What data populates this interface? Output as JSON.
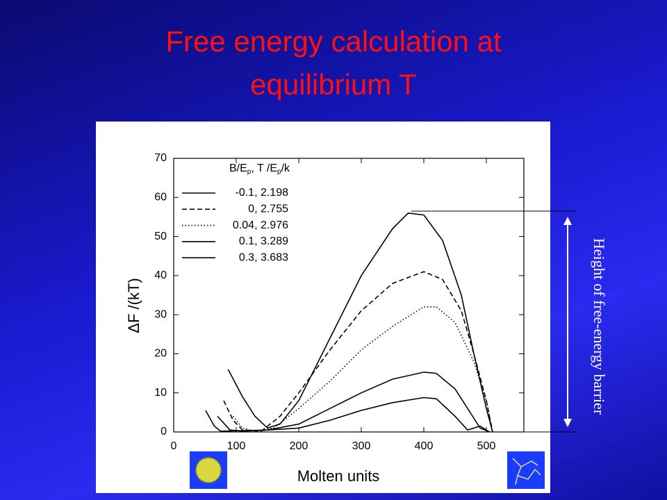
{
  "chart_data": {
    "type": "line",
    "title": [
      "Free energy calculation at",
      "equilibrium T"
    ],
    "x_label": "Molten units",
    "y_label": "ΔF /(kT)",
    "annotation": "Height of free-energy barrier",
    "legend_title_parts": [
      "B/E",
      "p",
      ", T /E",
      "p",
      "/k"
    ],
    "xlim": [
      0,
      560
    ],
    "xticks": [
      0,
      100,
      200,
      300,
      400,
      500
    ],
    "ylim": [
      0,
      70
    ],
    "yticks": [
      0,
      10,
      20,
      30,
      40,
      50,
      60,
      70
    ],
    "series": [
      {
        "name": "-0.1, 2.198",
        "color": "#000000",
        "dash": "solid",
        "x": [
          87,
          110,
          130,
          150,
          170,
          200,
          250,
          300,
          350,
          375,
          400,
          430,
          460,
          480,
          500,
          510
        ],
        "values": [
          16,
          9,
          4,
          1,
          2,
          8,
          24,
          40,
          52,
          56,
          55.5,
          49,
          35,
          20,
          6,
          0
        ]
      },
      {
        "name": "0, 2.755",
        "color": "#000000",
        "dash": "dashed",
        "x": [
          80,
          95,
          110,
          140,
          170,
          200,
          250,
          300,
          350,
          400,
          430,
          460,
          480,
          500,
          510
        ],
        "values": [
          8,
          3,
          0.5,
          0.2,
          4,
          10,
          21,
          31,
          38,
          41,
          39,
          31,
          20,
          8,
          0
        ]
      },
      {
        "name": "0.04, 2.976",
        "color": "#000000",
        "dash": "dotted",
        "x": [
          95,
          110,
          130,
          160,
          200,
          250,
          300,
          350,
          400,
          420,
          450,
          480,
          500,
          510
        ],
        "values": [
          4,
          1,
          0.2,
          1,
          6,
          13,
          21,
          27,
          32,
          32,
          28,
          18,
          8,
          0
        ]
      },
      {
        "name": "0.1, 3.289",
        "color": "#000000",
        "dash": "solid",
        "x": [
          70,
          90,
          110,
          150,
          200,
          250,
          300,
          350,
          400,
          420,
          450,
          470,
          490,
          505
        ],
        "values": [
          4,
          0.5,
          0.2,
          0.5,
          2,
          6,
          10,
          13.5,
          15.3,
          15,
          11,
          6,
          1,
          0
        ]
      },
      {
        "name": "0.3, 3.683",
        "color": "#000000",
        "dash": "solid",
        "x": [
          51,
          65,
          75,
          100,
          150,
          200,
          250,
          300,
          350,
          400,
          420,
          450,
          470,
          490,
          505
        ],
        "values": [
          5.5,
          1.5,
          0.2,
          0.3,
          0.5,
          1,
          3,
          5.5,
          7.5,
          8.8,
          8.5,
          4,
          0.5,
          1.5,
          0
        ]
      }
    ]
  }
}
